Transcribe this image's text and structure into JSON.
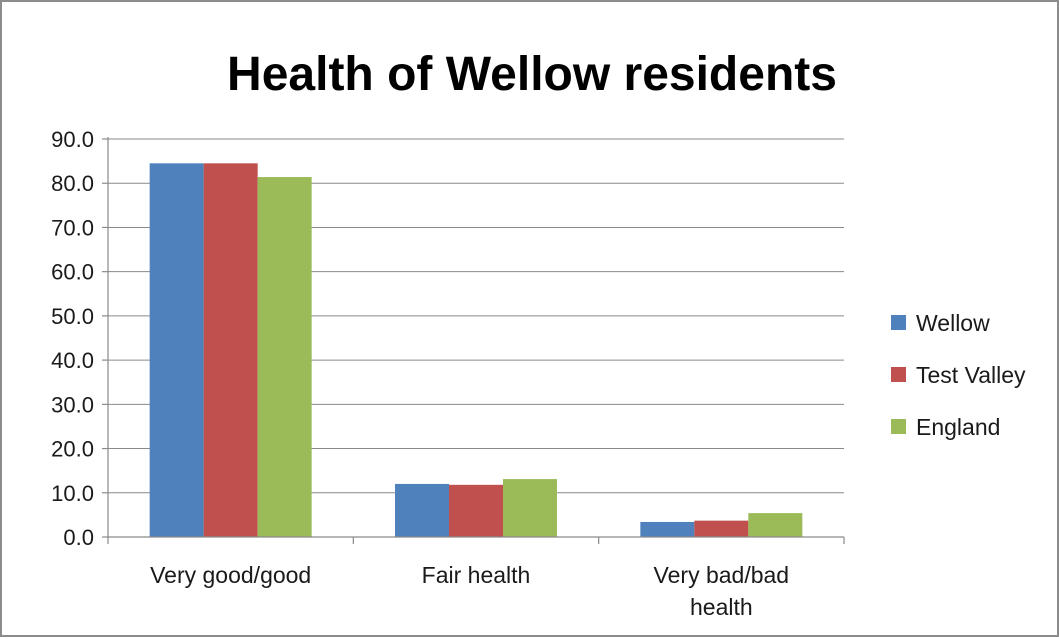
{
  "chart_data": {
    "type": "bar",
    "title": "Health of Wellow residents",
    "xlabel": "",
    "ylabel": "",
    "categories": [
      [
        "Very good/good"
      ],
      [
        "Fair health"
      ],
      [
        "Very bad/bad",
        "health"
      ]
    ],
    "series": [
      {
        "name": "Wellow",
        "color": "#4f81bd",
        "values": [
          84.5,
          12.0,
          3.4
        ]
      },
      {
        "name": "Test Valley",
        "color": "#c0504d",
        "values": [
          84.5,
          11.8,
          3.7
        ]
      },
      {
        "name": "England",
        "color": "#9bbb59",
        "values": [
          81.4,
          13.1,
          5.4
        ]
      }
    ],
    "ylim": [
      0,
      90
    ],
    "yticks": [
      "0.0",
      "10.0",
      "20.0",
      "30.0",
      "40.0",
      "50.0",
      "60.0",
      "70.0",
      "80.0",
      "90.0"
    ],
    "grid": true,
    "legend_position": "right"
  }
}
